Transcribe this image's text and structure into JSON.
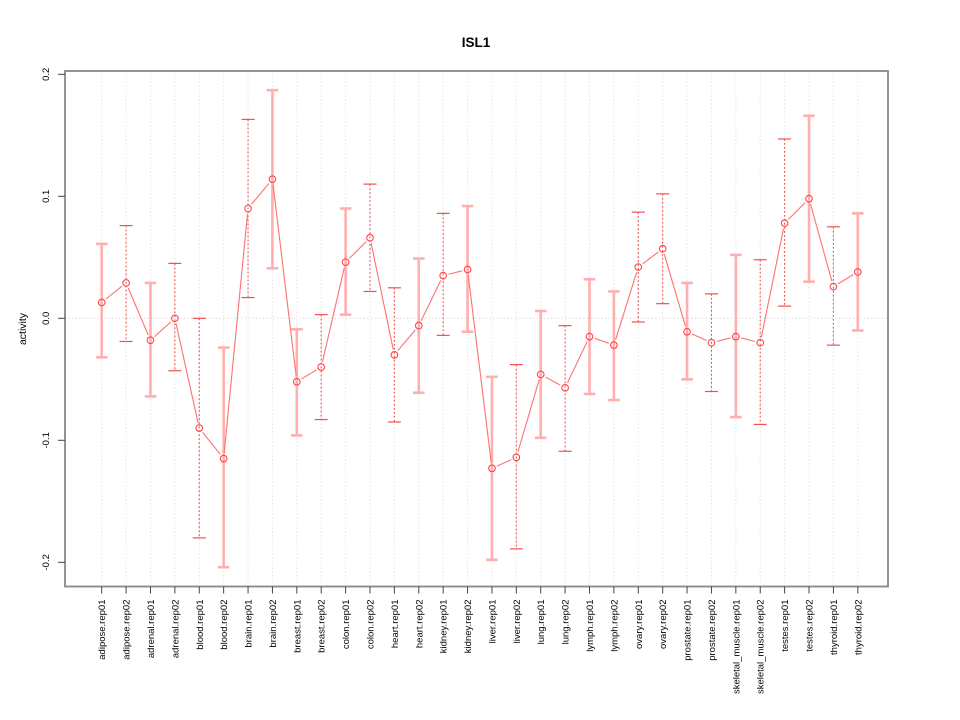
{
  "chart_data": {
    "type": "line",
    "title": "ISL1",
    "xlabel": "",
    "ylabel": "activity",
    "ylim": [
      -0.21,
      0.21
    ],
    "yticks": [
      0.2,
      0.1,
      0.0,
      -0.1,
      -0.2
    ],
    "ytick_labels": [
      "0.2",
      "0.1",
      "0.0",
      "-0.1",
      "-0.2"
    ],
    "grid": "vertical dotted gridline per category, dotted horizontal line at y=0",
    "legend": "none",
    "categories": [
      "adipose.rep01",
      "adipose.rep02",
      "adrenal.rep01",
      "adrenal.rep02",
      "blood.rep01",
      "blood.rep02",
      "brain.rep01",
      "brain.rep02",
      "breast.rep01",
      "breast.rep02",
      "colon.rep01",
      "colon.rep02",
      "heart.rep01",
      "heart.rep02",
      "kidney.rep01",
      "kidney.rep02",
      "liver.rep01",
      "liver.rep02",
      "lung.rep01",
      "lung.rep02",
      "lymph.rep01",
      "lymph.rep02",
      "ovary.rep01",
      "ovary.rep02",
      "prostate.rep01",
      "prostate.rep02",
      "skeletal_muscle.rep01",
      "skeletal_muscle.rep02",
      "testes.rep01",
      "testes.rep02",
      "thyroid.rep01",
      "thyroid.rep02"
    ],
    "series": [
      {
        "name": "activity",
        "values": [
          0.013,
          0.029,
          -0.018,
          0.0,
          -0.09,
          -0.115,
          0.09,
          0.114,
          -0.052,
          -0.04,
          0.046,
          0.066,
          -0.03,
          -0.006,
          0.035,
          0.04,
          -0.123,
          -0.114,
          -0.046,
          -0.057,
          -0.015,
          -0.022,
          0.042,
          0.057,
          -0.011,
          -0.02,
          -0.015,
          -0.02,
          0.078,
          0.098,
          0.026,
          0.038
        ],
        "error_low": [
          -0.032,
          -0.019,
          -0.064,
          -0.043,
          -0.18,
          -0.204,
          0.017,
          0.041,
          -0.096,
          -0.083,
          0.003,
          0.022,
          -0.085,
          -0.061,
          -0.014,
          -0.011,
          -0.198,
          -0.189,
          -0.098,
          -0.109,
          -0.062,
          -0.067,
          -0.003,
          0.012,
          -0.05,
          -0.06,
          -0.081,
          -0.087,
          0.01,
          0.03,
          -0.022,
          -0.01
        ],
        "error_high": [
          0.061,
          0.076,
          0.029,
          0.045,
          0.0,
          -0.024,
          0.163,
          0.187,
          -0.009,
          0.003,
          0.09,
          0.11,
          0.025,
          0.049,
          0.086,
          0.092,
          -0.048,
          -0.038,
          0.006,
          -0.006,
          0.032,
          0.022,
          0.087,
          0.102,
          0.029,
          0.02,
          0.052,
          0.048,
          0.147,
          0.166,
          0.075,
          0.086
        ],
        "error_bar_styles": [
          "solid",
          "dashed",
          "solid",
          "dashed",
          "dashed",
          "solid",
          "dashed",
          "solid",
          "solid",
          "dashed",
          "solid",
          "dashed",
          "dashed",
          "solid",
          "dashed",
          "solid",
          "solid",
          "dashed",
          "solid",
          "dashed",
          "solid",
          "solid",
          "dashed",
          "dashed",
          "solid",
          "dashed",
          "solid",
          "dashed",
          "dashed",
          "solid",
          "dashed",
          "solid"
        ]
      }
    ],
    "colors": {
      "point": "#ff4545",
      "connector_line": "#ff7070",
      "error_bar_solid": "#ffafaf",
      "error_bar_dashed": "#f25050",
      "gridline": "#d9d9d9",
      "zero_line": "#cccccc",
      "frame": "#888888",
      "tick": "#444444",
      "text": "#000000"
    },
    "marker": "open-circle"
  }
}
